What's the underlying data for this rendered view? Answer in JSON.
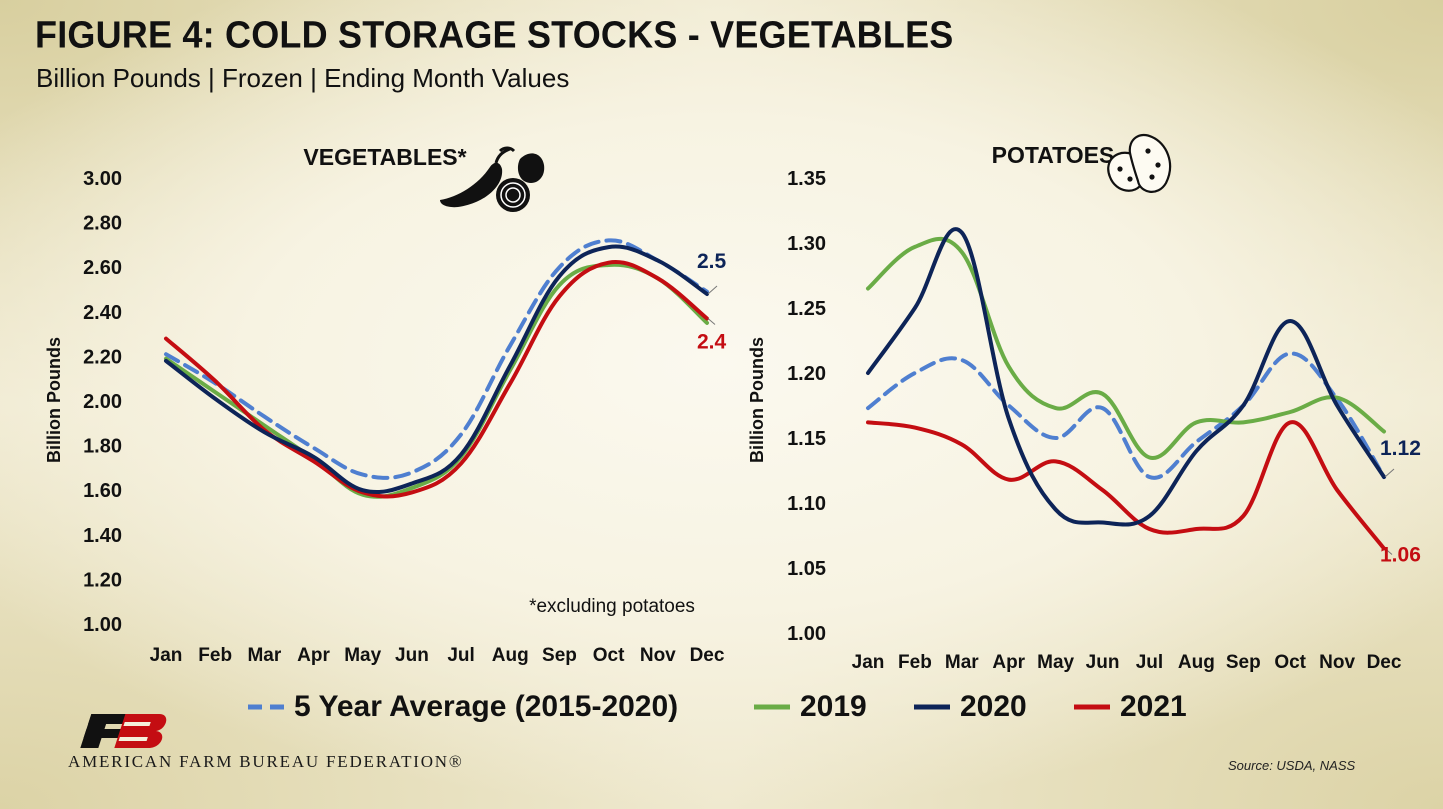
{
  "title": "FIGURE 4: COLD STORAGE STOCKS - VEGETABLES",
  "subtitle": "Billion Pounds | Frozen | Ending Month Values",
  "organization": "AMERICAN FARM BUREAU FEDERATION®",
  "source": "Source: USDA, NASS",
  "colors": {
    "five_year_average": "#4f7fd0",
    "y2019": "#6aac46",
    "y2020": "#0d2458",
    "y2021": "#c40d12",
    "label_2020": "#0d2458",
    "label_2021": "#c40d12"
  },
  "chart_data": [
    {
      "type": "line",
      "title": "VEGETABLES*",
      "ylabel": "Billion Pounds",
      "note": "*excluding potatoes",
      "categories": [
        "Jan",
        "Feb",
        "Mar",
        "Apr",
        "May",
        "Jun",
        "Jul",
        "Aug",
        "Sep",
        "Oct",
        "Nov",
        "Dec"
      ],
      "ylim": [
        1.0,
        3.0
      ],
      "yticks": [
        "1.00",
        "1.20",
        "1.40",
        "1.60",
        "1.80",
        "2.00",
        "2.20",
        "2.40",
        "2.60",
        "2.80",
        "3.00"
      ],
      "grid": false,
      "legend": "bottom",
      "series": [
        {
          "name": "5 Year Average (2015-2020)",
          "style": "dashed",
          "values": [
            2.21,
            2.08,
            1.93,
            1.79,
            1.67,
            1.68,
            1.85,
            2.25,
            2.6,
            2.72,
            2.63,
            2.49
          ]
        },
        {
          "name": "2019",
          "style": "solid",
          "values": [
            2.19,
            2.04,
            1.89,
            1.74,
            1.58,
            1.61,
            1.75,
            2.14,
            2.52,
            2.61,
            2.55,
            2.35
          ]
        },
        {
          "name": "2020",
          "style": "solid",
          "values": [
            2.18,
            2.01,
            1.86,
            1.75,
            1.6,
            1.63,
            1.76,
            2.16,
            2.56,
            2.69,
            2.63,
            2.48
          ]
        },
        {
          "name": "2021",
          "style": "solid",
          "values": [
            2.28,
            2.09,
            1.87,
            1.73,
            1.59,
            1.59,
            1.72,
            2.08,
            2.47,
            2.62,
            2.55,
            2.37
          ]
        }
      ],
      "end_labels": [
        {
          "series": "2020",
          "text": "2.5"
        },
        {
          "series": "2021",
          "text": "2.4"
        }
      ]
    },
    {
      "type": "line",
      "title": "POTATOES",
      "ylabel": "Billion Pounds",
      "categories": [
        "Jan",
        "Feb",
        "Mar",
        "Apr",
        "May",
        "Jun",
        "Jul",
        "Aug",
        "Sep",
        "Oct",
        "Nov",
        "Dec"
      ],
      "ylim": [
        1.0,
        1.35
      ],
      "yticks": [
        "1.00",
        "1.05",
        "1.10",
        "1.15",
        "1.20",
        "1.25",
        "1.30",
        "1.35"
      ],
      "grid": false,
      "series": [
        {
          "name": "5 Year Average (2015-2020)",
          "style": "dashed",
          "values": [
            1.173,
            1.2,
            1.21,
            1.175,
            1.15,
            1.173,
            1.12,
            1.147,
            1.175,
            1.215,
            1.18,
            1.12
          ]
        },
        {
          "name": "2019",
          "style": "solid",
          "values": [
            1.265,
            1.297,
            1.293,
            1.205,
            1.173,
            1.184,
            1.135,
            1.162,
            1.162,
            1.17,
            1.181,
            1.155
          ]
        },
        {
          "name": "2020",
          "style": "solid",
          "values": [
            1.2,
            1.25,
            1.308,
            1.165,
            1.095,
            1.085,
            1.09,
            1.14,
            1.175,
            1.24,
            1.175,
            1.12
          ]
        },
        {
          "name": "2021",
          "style": "solid",
          "values": [
            1.162,
            1.158,
            1.145,
            1.118,
            1.132,
            1.11,
            1.08,
            1.08,
            1.09,
            1.162,
            1.11,
            1.065
          ]
        }
      ],
      "end_labels": [
        {
          "series": "2020",
          "text": "1.12"
        },
        {
          "series": "2021",
          "text": "1.06"
        }
      ]
    }
  ]
}
